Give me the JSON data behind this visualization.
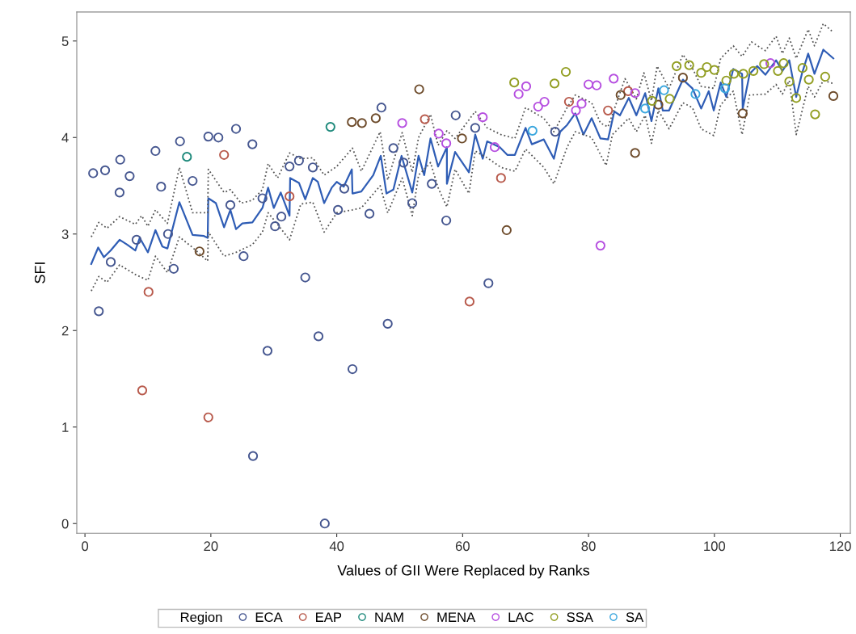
{
  "chart_data": {
    "type": "scatter",
    "xlabel": "Values of GII Were Replaced by Ranks",
    "ylabel": "SFI",
    "legend_title": "Region",
    "legend": "bottom",
    "grid": false,
    "marker": "circle",
    "xlim": [
      -1.3,
      121.6
    ],
    "ylim": [
      -0.1,
      5.3
    ],
    "xticks": [
      0,
      20,
      40,
      60,
      80,
      100,
      120
    ],
    "yticks": [
      0,
      1,
      2,
      3,
      4,
      5
    ],
    "series": [
      {
        "type": "line",
        "color": "#2f5db5",
        "marker": "none",
        "line_style": "solid",
        "x": [
          1.0,
          2.1,
          3.0,
          4.1,
          5.5,
          6.7,
          8.0,
          8.7,
          10.0,
          11.2,
          12.3,
          13.1,
          15.0,
          17.1,
          18.9,
          19.5,
          19.6,
          20.8,
          22.1,
          23.1,
          24.0,
          25.0,
          26.6,
          28.2,
          29.1,
          30.0,
          31.1,
          32.5,
          32.6,
          34.0,
          35.0,
          36.2,
          37.0,
          38.0,
          39.2,
          40.0,
          41.1,
          42.4,
          42.5,
          43.9,
          45.8,
          47.0,
          47.9,
          49.0,
          50.3,
          52.0,
          53.0,
          53.9,
          54.9,
          56.1,
          57.5,
          57.5,
          58.8,
          61.0,
          62.0,
          63.2,
          63.9,
          65.9,
          67.1,
          68.3,
          70.0,
          71.0,
          72.9,
          74.5,
          75.5,
          76.6,
          77.9,
          79.2,
          80.5,
          81.9,
          83.1,
          84.1,
          85.0,
          86.4,
          87.6,
          89.0,
          90.0,
          91.1,
          91.8,
          92.8,
          95.0,
          96.5,
          97.9,
          99.1,
          99.9,
          101.0,
          101.9,
          103.0,
          104.4,
          104.5,
          105.6,
          106.8,
          108.1,
          109.8,
          110.8,
          111.9,
          113.0,
          113.9,
          114.9,
          115.9,
          117.3,
          118.9
        ],
        "values": [
          2.69,
          2.86,
          2.76,
          2.83,
          2.94,
          2.89,
          2.83,
          2.96,
          2.81,
          3.04,
          2.87,
          2.85,
          3.33,
          2.99,
          2.98,
          2.96,
          3.37,
          3.32,
          3.07,
          3.25,
          3.05,
          3.11,
          3.12,
          3.27,
          3.48,
          3.27,
          3.43,
          3.19,
          3.58,
          3.53,
          3.36,
          3.58,
          3.54,
          3.32,
          3.48,
          3.54,
          3.49,
          3.67,
          3.42,
          3.44,
          3.61,
          3.81,
          3.42,
          3.46,
          3.81,
          3.43,
          3.81,
          3.61,
          3.99,
          3.7,
          3.9,
          3.52,
          3.85,
          3.64,
          4.03,
          3.78,
          3.96,
          3.9,
          3.82,
          3.82,
          4.1,
          3.93,
          3.98,
          3.78,
          4.06,
          4.13,
          4.25,
          4.03,
          4.2,
          3.99,
          3.98,
          4.27,
          4.23,
          4.41,
          4.23,
          4.46,
          4.17,
          4.51,
          4.28,
          4.28,
          4.6,
          4.51,
          4.3,
          4.48,
          4.28,
          4.57,
          4.42,
          4.71,
          4.66,
          4.3,
          4.66,
          4.74,
          4.65,
          4.8,
          4.69,
          4.8,
          4.42,
          4.66,
          4.87,
          4.66,
          4.91,
          4.82
        ]
      },
      {
        "type": "line",
        "color": "#555555",
        "marker": "none",
        "line_style": "dotted",
        "x": [
          1.0,
          2.2,
          3.5,
          5.5,
          8.0,
          9.0,
          10.0,
          11.2,
          13.1,
          15.0,
          17.1,
          19.5,
          19.6,
          22.1,
          23.1,
          24.8,
          26.6,
          28.2,
          29.1,
          30.6,
          32.5,
          34.3,
          36.2,
          38.0,
          40.0,
          42.5,
          43.9,
          46.9,
          48.1,
          50.4,
          52.0,
          53.0,
          54.9,
          56.1,
          57.5,
          58.8,
          62.0,
          63.9,
          66.1,
          68.3,
          70.0,
          72.9,
          74.5,
          76.6,
          77.9,
          80.5,
          81.9,
          83.1,
          85.8,
          87.6,
          88.8,
          90.0,
          90.9,
          92.8,
          95.0,
          96.5,
          97.9,
          99.9,
          101.0,
          103.0,
          104.4,
          105.9,
          108.1,
          109.8,
          110.8,
          111.9,
          113.0,
          114.9,
          115.9,
          117.3,
          118.9
        ],
        "values": [
          2.97,
          3.12,
          3.06,
          3.18,
          3.1,
          3.19,
          3.08,
          3.25,
          3.11,
          3.69,
          3.22,
          3.22,
          3.67,
          3.43,
          3.46,
          3.32,
          3.35,
          3.46,
          3.73,
          3.58,
          3.84,
          3.78,
          3.79,
          3.61,
          3.7,
          3.89,
          3.65,
          4.06,
          3.56,
          4.05,
          3.64,
          4.0,
          4.24,
          3.92,
          4.07,
          3.99,
          4.27,
          4.1,
          4.03,
          3.99,
          4.31,
          4.2,
          4.06,
          4.31,
          4.44,
          4.36,
          4.15,
          4.11,
          4.61,
          4.4,
          4.67,
          4.38,
          4.74,
          4.51,
          4.86,
          4.72,
          4.53,
          4.51,
          4.82,
          4.95,
          4.84,
          4.99,
          4.9,
          5.05,
          4.87,
          5.03,
          4.82,
          5.12,
          4.95,
          5.18,
          5.09
        ]
      },
      {
        "type": "line",
        "color": "#555555",
        "marker": "none",
        "line_style": "dotted",
        "x": [
          1.0,
          2.2,
          3.5,
          5.5,
          8.0,
          10.0,
          11.2,
          13.1,
          15.0,
          17.1,
          19.5,
          19.6,
          22.1,
          24.0,
          26.6,
          28.2,
          29.1,
          30.6,
          32.5,
          34.3,
          36.2,
          38.0,
          40.0,
          42.5,
          43.9,
          46.9,
          48.1,
          50.4,
          52.0,
          53.0,
          54.9,
          56.1,
          57.5,
          58.8,
          61.0,
          62.0,
          63.9,
          66.1,
          68.3,
          70.0,
          72.9,
          74.5,
          76.6,
          77.9,
          80.5,
          82.8,
          83.8,
          86.4,
          87.6,
          89.0,
          90.0,
          91.1,
          92.8,
          95.0,
          96.5,
          97.9,
          99.9,
          101.0,
          103.0,
          104.4,
          105.6,
          108.1,
          109.8,
          110.8,
          111.9,
          113.0,
          114.9,
          115.9,
          117.3,
          118.9
        ],
        "values": [
          2.41,
          2.56,
          2.5,
          2.68,
          2.58,
          2.52,
          2.77,
          2.6,
          2.97,
          2.86,
          2.72,
          3.02,
          2.77,
          2.81,
          2.89,
          3.02,
          3.22,
          3.1,
          2.94,
          3.31,
          3.33,
          3.02,
          3.22,
          3.25,
          3.27,
          3.5,
          3.22,
          3.58,
          3.19,
          3.61,
          3.74,
          3.48,
          3.28,
          3.67,
          3.42,
          3.86,
          3.79,
          3.69,
          3.65,
          3.88,
          3.69,
          3.52,
          3.9,
          4.06,
          4.0,
          3.71,
          4.03,
          4.2,
          4.06,
          4.23,
          3.94,
          4.28,
          4.09,
          4.36,
          4.31,
          4.09,
          4.02,
          4.34,
          4.48,
          4.03,
          4.44,
          4.45,
          4.55,
          4.45,
          4.59,
          4.03,
          4.53,
          4.42,
          4.59,
          4.56
        ]
      },
      {
        "name": "ECA",
        "color": "#465790",
        "x": [
          1.3,
          3.2,
          5.6,
          7.1,
          5.5,
          11.2,
          15.1,
          19.6,
          21.2,
          24.0,
          26.6,
          17.1,
          12.1,
          32.5,
          34.0,
          36.2,
          40.2,
          23.1,
          28.2,
          31.2,
          30.2,
          8.2,
          13.2,
          4.1,
          14.1,
          25.2,
          2.2,
          35.0,
          37.1,
          29.0,
          48.1,
          42.5,
          26.7,
          38.1,
          47.1,
          49.0,
          50.6,
          52.0,
          55.1,
          57.4,
          58.9,
          62.0,
          64.1,
          74.7,
          41.2,
          45.2
        ],
        "values": [
          3.63,
          3.66,
          3.77,
          3.6,
          3.43,
          3.86,
          3.96,
          4.01,
          4.0,
          4.09,
          3.93,
          3.55,
          3.49,
          3.7,
          3.76,
          3.69,
          3.25,
          3.3,
          3.37,
          3.18,
          3.08,
          2.94,
          3.0,
          2.71,
          2.64,
          2.77,
          2.2,
          2.55,
          1.94,
          1.79,
          2.07,
          1.6,
          0.7,
          0.0,
          4.31,
          3.89,
          3.74,
          3.32,
          3.52,
          3.14,
          4.23,
          4.1,
          2.49,
          4.06,
          3.47,
          3.21
        ]
      },
      {
        "name": "EAP",
        "color": "#b85a4c",
        "x": [
          10.1,
          9.1,
          19.6,
          22.1,
          32.5,
          54.0,
          66.1,
          61.1,
          76.9,
          83.1,
          86.3
        ],
        "values": [
          2.4,
          1.38,
          1.1,
          3.82,
          3.39,
          4.19,
          3.58,
          2.3,
          4.37,
          4.28,
          4.48
        ]
      },
      {
        "name": "NAM",
        "color": "#1f8a7c",
        "x": [
          16.2,
          39.0
        ],
        "values": [
          3.8,
          4.11
        ]
      },
      {
        "name": "MENA",
        "color": "#6e4c2c",
        "x": [
          18.2,
          42.4,
          44.0,
          46.2,
          53.1,
          59.9,
          67.0,
          95.0,
          91.1,
          85.1,
          87.4,
          104.5,
          118.9
        ],
        "values": [
          2.82,
          4.16,
          4.15,
          4.2,
          4.5,
          3.99,
          3.04,
          4.62,
          4.34,
          4.44,
          3.84,
          4.25,
          4.43
        ]
      },
      {
        "name": "LAC",
        "color": "#b64fe0",
        "x": [
          50.4,
          56.2,
          57.4,
          63.2,
          65.1,
          68.9,
          70.1,
          72.0,
          73.0,
          78.9,
          78.0,
          80.0,
          81.3,
          84.0,
          87.4,
          108.9,
          81.9
        ],
        "values": [
          4.15,
          4.04,
          3.94,
          4.21,
          3.9,
          4.45,
          4.53,
          4.32,
          4.37,
          4.35,
          4.28,
          4.55,
          4.54,
          4.61,
          4.46,
          4.77,
          2.88
        ]
      },
      {
        "name": "SSA",
        "color": "#929e22",
        "x": [
          68.2,
          74.6,
          76.4,
          94.0,
          96.0,
          97.9,
          98.8,
          100.0,
          90.1,
          92.9,
          101.9,
          103.1,
          104.6,
          106.2,
          107.9,
          110.1,
          111.0,
          111.9,
          113.0,
          114.0,
          115.0,
          116.0,
          117.6
        ],
        "values": [
          4.57,
          4.56,
          4.68,
          4.74,
          4.75,
          4.67,
          4.73,
          4.7,
          4.38,
          4.4,
          4.59,
          4.66,
          4.66,
          4.69,
          4.76,
          4.69,
          4.77,
          4.58,
          4.41,
          4.72,
          4.6,
          4.24,
          4.63
        ]
      },
      {
        "name": "SA",
        "color": "#3ba7de",
        "x": [
          71.1,
          89.0,
          92.0,
          97.0,
          101.7
        ],
        "values": [
          4.07,
          4.3,
          4.49,
          4.45,
          4.51
        ]
      }
    ]
  }
}
